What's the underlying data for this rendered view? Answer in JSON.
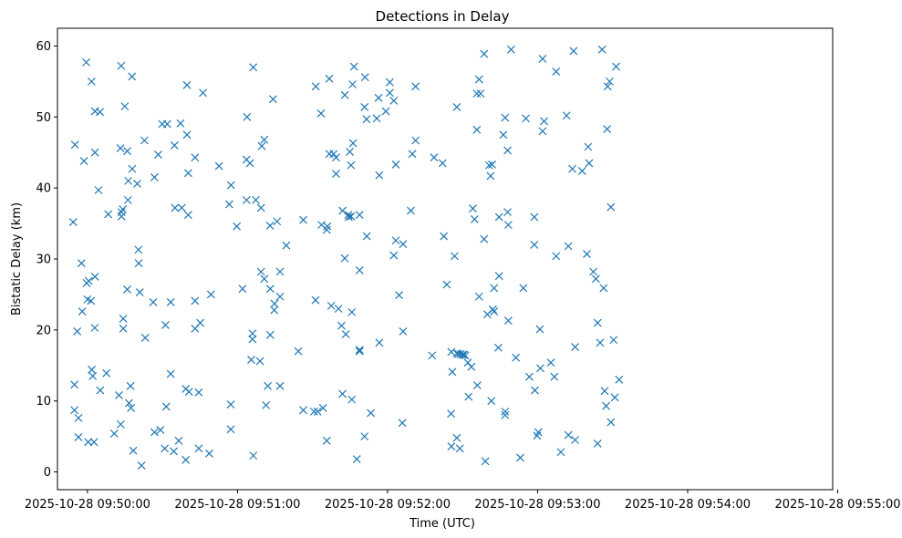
{
  "chart_data": {
    "type": "scatter",
    "title": "Detections in Delay",
    "xlabel": "Time (UTC)",
    "ylabel": "Bistatic Delay (km)",
    "marker": "x",
    "colors": {
      "series": "#1f77b4",
      "axis": "#000000",
      "background": "#ffffff"
    },
    "x_unit": "seconds after 2025-10-28 09:50:00",
    "xlim": [
      -12,
      298
    ],
    "ylim": [
      -2.5,
      62.5
    ],
    "x_ticks": [
      {
        "value": 0,
        "label": "2025-10-28 09:50:00"
      },
      {
        "value": 60,
        "label": "2025-10-28 09:51:00"
      },
      {
        "value": 120,
        "label": "2025-10-28 09:52:00"
      },
      {
        "value": 180,
        "label": "2025-10-28 09:53:00"
      },
      {
        "value": 240,
        "label": "2025-10-28 09:54:00"
      },
      {
        "value": 300,
        "label": "2025-10-28 09:55:00"
      }
    ],
    "y_ticks": [
      {
        "value": 0,
        "label": "0"
      },
      {
        "value": 10,
        "label": "10"
      },
      {
        "value": 20,
        "label": "20"
      },
      {
        "value": 30,
        "label": "30"
      },
      {
        "value": 40,
        "label": "40"
      },
      {
        "value": 50,
        "label": "50"
      },
      {
        "value": 60,
        "label": "60"
      }
    ],
    "grid": false,
    "series": [
      {
        "points": [
          [
            -5.7,
            35.2
          ],
          [
            -5.0,
            46.1
          ],
          [
            -5.2,
            12.3
          ],
          [
            -5.2,
            8.7
          ],
          [
            -4.1,
            19.8
          ],
          [
            -3.6,
            4.9
          ],
          [
            -3.6,
            7.6
          ],
          [
            -2.4,
            29.4
          ],
          [
            -2.1,
            22.6
          ],
          [
            -1.4,
            43.8
          ],
          [
            -0.5,
            57.7
          ],
          [
            -0.3,
            26.6
          ],
          [
            0.0,
            24.3
          ],
          [
            0.3,
            4.2
          ],
          [
            0.5,
            26.9
          ],
          [
            1.4,
            24.1
          ],
          [
            1.6,
            55.0
          ],
          [
            1.7,
            14.4
          ],
          [
            2.1,
            13.5
          ],
          [
            2.6,
            4.2
          ],
          [
            2.9,
            20.3
          ],
          [
            3.0,
            27.5
          ],
          [
            3.0,
            45.0
          ],
          [
            3.0,
            50.8
          ],
          [
            4.4,
            39.7
          ],
          [
            5.0,
            50.7
          ],
          [
            5.1,
            11.5
          ],
          [
            7.6,
            13.9
          ],
          [
            8.3,
            36.3
          ],
          [
            10.7,
            5.4
          ],
          [
            12.6,
            10.8
          ],
          [
            13.3,
            6.7
          ],
          [
            13.2,
            45.6
          ],
          [
            13.5,
            57.2
          ],
          [
            13.6,
            36.6
          ],
          [
            13.6,
            36.0
          ],
          [
            14.1,
            37.0
          ],
          [
            14.3,
            21.6
          ],
          [
            14.3,
            20.2
          ],
          [
            14.9,
            51.5
          ],
          [
            15.9,
            45.2
          ],
          [
            15.9,
            25.7
          ],
          [
            16.2,
            38.3
          ],
          [
            16.3,
            41.0
          ],
          [
            16.6,
            9.7
          ],
          [
            17.2,
            12.1
          ],
          [
            17.4,
            9.0
          ],
          [
            17.8,
            55.7
          ],
          [
            17.9,
            42.7
          ],
          [
            18.3,
            3.0
          ],
          [
            19.9,
            40.6
          ],
          [
            20.4,
            31.3
          ],
          [
            20.5,
            29.4
          ],
          [
            20.9,
            25.3
          ],
          [
            21.6,
            0.9
          ],
          [
            22.8,
            46.7
          ],
          [
            23.1,
            18.9
          ],
          [
            26.3,
            23.9
          ],
          [
            26.8,
            5.6
          ],
          [
            26.8,
            41.5
          ],
          [
            28.3,
            44.7
          ],
          [
            29.2,
            5.9
          ],
          [
            29.9,
            49.0
          ],
          [
            30.9,
            3.3
          ],
          [
            31.2,
            20.7
          ],
          [
            31.5,
            9.2
          ],
          [
            31.9,
            49.0
          ],
          [
            33.3,
            13.8
          ],
          [
            33.3,
            23.9
          ],
          [
            34.5,
            2.9
          ],
          [
            34.8,
            46.0
          ],
          [
            35.0,
            37.2
          ],
          [
            36.5,
            4.4
          ],
          [
            37.2,
            49.1
          ],
          [
            37.7,
            37.2
          ],
          [
            39.3,
            1.7
          ],
          [
            39.3,
            11.7
          ],
          [
            39.8,
            47.5
          ],
          [
            39.8,
            54.5
          ],
          [
            40.3,
            42.1
          ],
          [
            40.3,
            36.2
          ],
          [
            40.6,
            11.3
          ],
          [
            43.0,
            20.2
          ],
          [
            43.0,
            44.3
          ],
          [
            43.0,
            24.1
          ],
          [
            44.5,
            3.3
          ],
          [
            44.5,
            11.2
          ],
          [
            45.1,
            21.0
          ],
          [
            46.2,
            53.4
          ],
          [
            48.7,
            2.6
          ],
          [
            49.4,
            25.0
          ],
          [
            52.6,
            43.1
          ],
          [
            56.7,
            37.7
          ],
          [
            57.4,
            40.4
          ],
          [
            57.3,
            9.5
          ],
          [
            57.3,
            6.0
          ],
          [
            59.7,
            34.6
          ],
          [
            62.0,
            25.8
          ],
          [
            63.6,
            44.0
          ],
          [
            63.6,
            38.3
          ],
          [
            63.8,
            50.0
          ],
          [
            65.0,
            43.5
          ],
          [
            65.5,
            15.8
          ],
          [
            66.0,
            18.7
          ],
          [
            66.0,
            19.5
          ],
          [
            66.3,
            2.3
          ],
          [
            66.3,
            57.0
          ],
          [
            67.3,
            38.3
          ],
          [
            69.0,
            15.6
          ],
          [
            69.4,
            28.2
          ],
          [
            69.4,
            37.2
          ],
          [
            69.7,
            45.9
          ],
          [
            70.7,
            27.2
          ],
          [
            70.7,
            46.8
          ],
          [
            71.4,
            9.4
          ],
          [
            72.1,
            12.1
          ],
          [
            73.0,
            34.7
          ],
          [
            73.1,
            19.3
          ],
          [
            73.1,
            25.8
          ],
          [
            74.2,
            52.5
          ],
          [
            74.7,
            22.8
          ],
          [
            74.8,
            23.7
          ],
          [
            75.8,
            35.3
          ],
          [
            77.0,
            24.7
          ],
          [
            77.0,
            28.2
          ],
          [
            77.0,
            12.1
          ],
          [
            79.5,
            31.9
          ],
          [
            84.3,
            17.0
          ],
          [
            86.3,
            35.5
          ],
          [
            86.3,
            8.7
          ],
          [
            90.6,
            8.5
          ],
          [
            91.2,
            24.2
          ],
          [
            91.3,
            54.3
          ],
          [
            92.0,
            8.5
          ],
          [
            93.4,
            50.5
          ],
          [
            93.6,
            34.8
          ],
          [
            94.2,
            9.0
          ],
          [
            95.7,
            4.4
          ],
          [
            95.7,
            34.1
          ],
          [
            95.9,
            34.6
          ],
          [
            96.7,
            44.8
          ],
          [
            96.7,
            55.4
          ],
          [
            97.5,
            23.4
          ],
          [
            98.4,
            44.8
          ],
          [
            99.4,
            44.3
          ],
          [
            99.4,
            42.0
          ],
          [
            100.4,
            23.0
          ],
          [
            101.6,
            20.6
          ],
          [
            102.0,
            11.0
          ],
          [
            102.0,
            36.8
          ],
          [
            102.9,
            30.1
          ],
          [
            102.9,
            53.1
          ],
          [
            103.3,
            19.4
          ],
          [
            104.3,
            36.2
          ],
          [
            104.5,
            35.9
          ],
          [
            104.9,
            45.1
          ],
          [
            105.4,
            36.0
          ],
          [
            105.4,
            43.2
          ],
          [
            105.7,
            10.2
          ],
          [
            105.7,
            22.5
          ],
          [
            106.0,
            54.6
          ],
          [
            106.2,
            46.3
          ],
          [
            106.6,
            57.1
          ],
          [
            107.7,
            1.8
          ],
          [
            108.8,
            28.4
          ],
          [
            108.8,
            17.2
          ],
          [
            108.8,
            17.0
          ],
          [
            108.8,
            36.2
          ],
          [
            110.8,
            5.0
          ],
          [
            110.8,
            51.4
          ],
          [
            111.0,
            55.6
          ],
          [
            111.6,
            49.7
          ],
          [
            111.7,
            33.2
          ],
          [
            113.3,
            8.3
          ],
          [
            115.7,
            49.8
          ],
          [
            116.4,
            52.7
          ],
          [
            116.7,
            18.2
          ],
          [
            116.7,
            41.8
          ],
          [
            119.3,
            50.8
          ],
          [
            120.9,
            53.4
          ],
          [
            120.9,
            54.9
          ],
          [
            122.5,
            30.5
          ],
          [
            122.5,
            52.3
          ],
          [
            123.3,
            43.3
          ],
          [
            123.3,
            32.6
          ],
          [
            124.6,
            24.9
          ],
          [
            125.9,
            6.9
          ],
          [
            126.2,
            19.8
          ],
          [
            126.2,
            32.1
          ],
          [
            129.3,
            36.8
          ],
          [
            129.9,
            44.8
          ],
          [
            131.2,
            46.7
          ],
          [
            131.2,
            54.3
          ],
          [
            137.8,
            16.4
          ],
          [
            138.6,
            44.3
          ],
          [
            142.0,
            43.5
          ],
          [
            142.5,
            33.2
          ],
          [
            143.7,
            26.4
          ],
          [
            145.4,
            8.2
          ],
          [
            145.5,
            3.6
          ],
          [
            145.5,
            16.9
          ],
          [
            145.9,
            14.1
          ],
          [
            146.8,
            30.4
          ],
          [
            147.7,
            51.4
          ],
          [
            147.7,
            16.7
          ],
          [
            147.7,
            4.8
          ],
          [
            148.3,
            16.6
          ],
          [
            148.9,
            3.3
          ],
          [
            149.2,
            16.6
          ],
          [
            150.0,
            16.5
          ],
          [
            150.5,
            16.5
          ],
          [
            151.1,
            16.4
          ],
          [
            152.1,
            15.4
          ],
          [
            152.4,
            10.6
          ],
          [
            153.5,
            14.8
          ],
          [
            154.1,
            37.1
          ],
          [
            154.8,
            35.6
          ],
          [
            155.7,
            53.3
          ],
          [
            155.7,
            48.2
          ],
          [
            155.9,
            12.2
          ],
          [
            156.6,
            24.7
          ],
          [
            156.6,
            55.3
          ],
          [
            157.2,
            53.3
          ],
          [
            158.6,
            32.8
          ],
          [
            158.6,
            58.9
          ],
          [
            159.1,
            1.5
          ],
          [
            159.9,
            22.2
          ],
          [
            160.6,
            43.2
          ],
          [
            161.2,
            41.7
          ],
          [
            161.5,
            10.0
          ],
          [
            161.8,
            43.3
          ],
          [
            162.1,
            22.9
          ],
          [
            162.6,
            22.6
          ],
          [
            162.6,
            25.9
          ],
          [
            164.3,
            17.5
          ],
          [
            164.6,
            27.6
          ],
          [
            164.6,
            35.9
          ],
          [
            166.3,
            47.5
          ],
          [
            167.0,
            49.9
          ],
          [
            167.0,
            8.5
          ],
          [
            167.0,
            8.0
          ],
          [
            168.0,
            45.3
          ],
          [
            168.0,
            36.6
          ],
          [
            168.3,
            21.3
          ],
          [
            168.3,
            34.8
          ],
          [
            169.4,
            59.5
          ],
          [
            171.3,
            16.1
          ],
          [
            173.1,
            2.0
          ],
          [
            174.3,
            25.9
          ],
          [
            175.3,
            49.8
          ],
          [
            176.7,
            13.4
          ],
          [
            178.7,
            35.9
          ],
          [
            178.7,
            32.0
          ],
          [
            178.9,
            11.5
          ],
          [
            179.8,
            5.1
          ],
          [
            180.3,
            5.6
          ],
          [
            180.9,
            20.1
          ],
          [
            181.1,
            14.6
          ],
          [
            182.0,
            48.0
          ],
          [
            182.0,
            58.2
          ],
          [
            182.6,
            49.4
          ],
          [
            185.3,
            15.4
          ],
          [
            186.7,
            13.4
          ],
          [
            187.4,
            56.4
          ],
          [
            187.4,
            30.4
          ],
          [
            189.3,
            2.8
          ],
          [
            191.6,
            50.2
          ],
          [
            192.3,
            31.8
          ],
          [
            192.3,
            5.2
          ],
          [
            193.9,
            42.7
          ],
          [
            194.4,
            59.3
          ],
          [
            195.0,
            4.5
          ],
          [
            195.0,
            17.6
          ],
          [
            197.8,
            42.4
          ],
          [
            199.7,
            30.7
          ],
          [
            200.2,
            45.8
          ],
          [
            200.6,
            43.5
          ],
          [
            202.3,
            28.2
          ],
          [
            203.3,
            27.2
          ],
          [
            204.0,
            4.0
          ],
          [
            204.0,
            21.0
          ],
          [
            205.0,
            18.2
          ],
          [
            205.8,
            59.5
          ],
          [
            206.4,
            25.9
          ],
          [
            206.8,
            11.4
          ],
          [
            207.4,
            9.3
          ],
          [
            207.8,
            48.3
          ],
          [
            208.0,
            54.3
          ],
          [
            208.8,
            55.0
          ],
          [
            209.3,
            7.0
          ],
          [
            209.3,
            37.3
          ],
          [
            210.4,
            18.6
          ],
          [
            210.9,
            10.5
          ],
          [
            211.4,
            57.1
          ],
          [
            212.6,
            13.0
          ]
        ]
      }
    ]
  }
}
